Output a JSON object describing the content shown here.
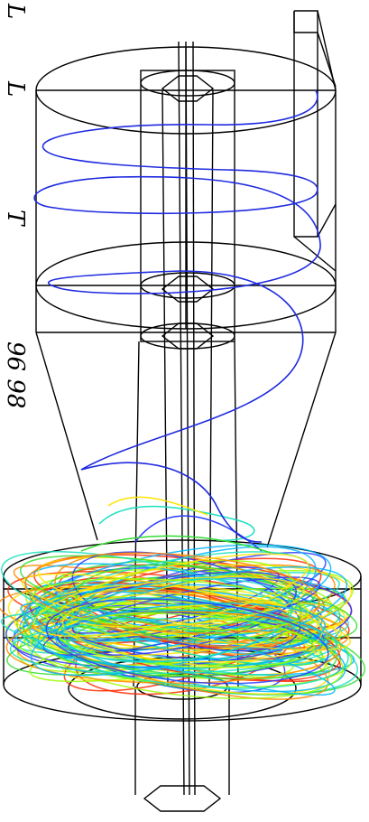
{
  "caption": {
    "letters": [
      "L",
      "L",
      "T"
    ],
    "number": "96 98"
  },
  "colors": {
    "wireframe": "#000000",
    "inlet_streamline": "#1f2be0",
    "streamline_palette": [
      "#2a3bff",
      "#00b7ff",
      "#19e0c0",
      "#33dd33",
      "#9bff00",
      "#ffe400",
      "#ff8800",
      "#ff2a00"
    ]
  }
}
